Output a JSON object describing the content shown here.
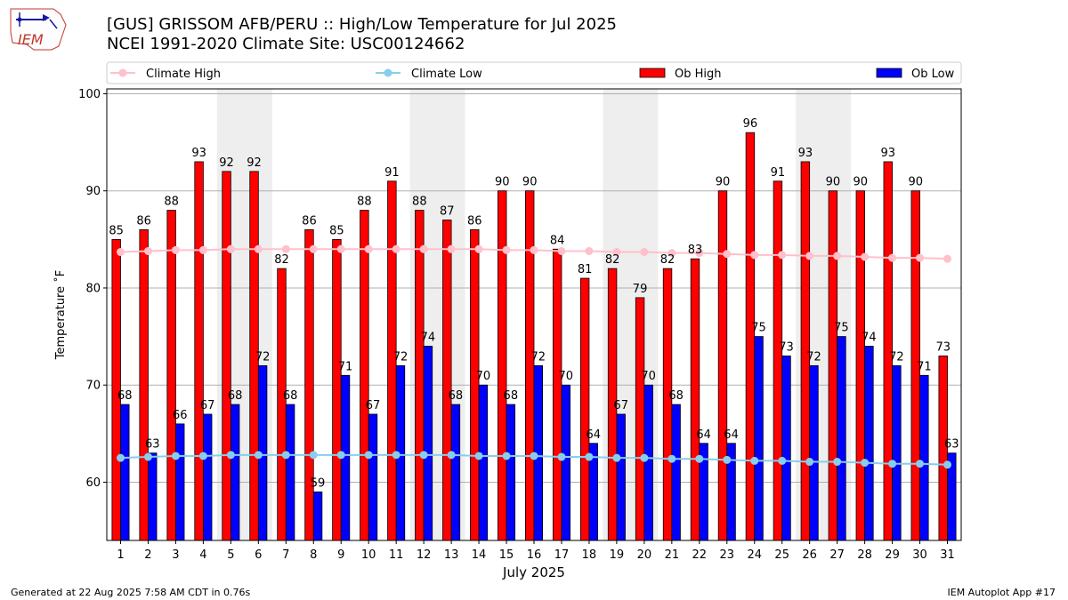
{
  "logo_text": "IEM",
  "title_line1": "[GUS] GRISSOM AFB/PERU :: High/Low Temperature for Jul 2025",
  "title_line2": "NCEI 1991-2020 Climate Site: USC00124662",
  "footer_left": "Generated at 22 Aug 2025 7:58 AM CDT in 0.76s",
  "footer_right": "IEM Autoplot App #17",
  "chart_data": {
    "type": "bar",
    "xlabel": "July 2025",
    "ylabel": "Temperature ˚F",
    "ylim": [
      54,
      100.5
    ],
    "yticks": [
      60,
      70,
      80,
      90,
      100
    ],
    "grid": true,
    "legend_placement": "top",
    "categories": [
      "1",
      "2",
      "3",
      "4",
      "5",
      "6",
      "7",
      "8",
      "9",
      "10",
      "11",
      "12",
      "13",
      "14",
      "15",
      "16",
      "17",
      "18",
      "19",
      "20",
      "21",
      "22",
      "23",
      "24",
      "25",
      "26",
      "27",
      "28",
      "29",
      "30",
      "31"
    ],
    "weekend_shading": [
      [
        5,
        6
      ],
      [
        12,
        13
      ],
      [
        19,
        20
      ],
      [
        26,
        27
      ]
    ],
    "series": [
      {
        "name": "Climate High",
        "kind": "line",
        "color": "#ffc0cb",
        "values": [
          83.7,
          83.8,
          83.9,
          83.9,
          84.0,
          84.0,
          84.0,
          84.0,
          84.0,
          84.0,
          84.0,
          84.0,
          84.0,
          84.0,
          83.9,
          83.9,
          83.8,
          83.8,
          83.7,
          83.7,
          83.6,
          83.6,
          83.5,
          83.4,
          83.4,
          83.3,
          83.3,
          83.2,
          83.1,
          83.1,
          83.0
        ]
      },
      {
        "name": "Climate Low",
        "kind": "line",
        "color": "#87ceeb",
        "values": [
          62.5,
          62.6,
          62.7,
          62.7,
          62.8,
          62.8,
          62.8,
          62.8,
          62.8,
          62.8,
          62.8,
          62.8,
          62.8,
          62.7,
          62.7,
          62.7,
          62.6,
          62.6,
          62.5,
          62.5,
          62.4,
          62.4,
          62.3,
          62.2,
          62.2,
          62.1,
          62.1,
          62.0,
          61.9,
          61.9,
          61.8
        ]
      },
      {
        "name": "Ob High",
        "kind": "bar",
        "color": "#ff0000",
        "values": [
          85,
          86,
          88,
          93,
          92,
          92,
          82,
          86,
          85,
          88,
          91,
          88,
          87,
          86,
          90,
          90,
          84,
          81,
          82,
          79,
          82,
          83,
          90,
          96,
          91,
          93,
          90,
          90,
          93,
          90,
          73
        ]
      },
      {
        "name": "Ob Low",
        "kind": "bar",
        "color": "#0000ff",
        "values": [
          68,
          63,
          66,
          67,
          68,
          72,
          68,
          59,
          71,
          67,
          72,
          74,
          68,
          70,
          68,
          72,
          70,
          64,
          67,
          70,
          68,
          64,
          64,
          75,
          73,
          72,
          75,
          74,
          72,
          71,
          63
        ]
      }
    ]
  }
}
